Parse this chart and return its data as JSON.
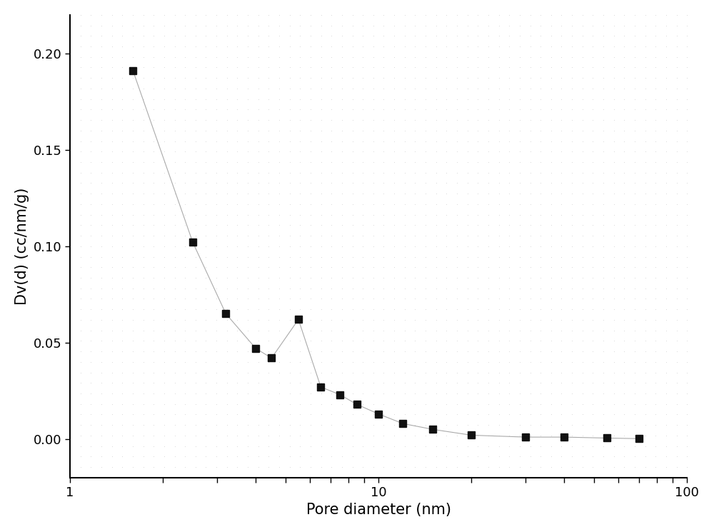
{
  "x": [
    1.6,
    2.5,
    3.2,
    4.0,
    4.5,
    5.5,
    6.5,
    7.5,
    8.5,
    10.0,
    12.0,
    15.0,
    20.0,
    30.0,
    40.0,
    55.0,
    70.0
  ],
  "y": [
    0.191,
    0.102,
    0.065,
    0.047,
    0.042,
    0.062,
    0.027,
    0.023,
    0.018,
    0.013,
    0.008,
    0.005,
    0.002,
    0.001,
    0.001,
    0.0005,
    0.0002
  ],
  "xlabel": "Pore diameter (nm)",
  "ylabel": "Dv(d) (cc/nm/g)",
  "xlim": [
    1,
    100
  ],
  "ylim": [
    -0.02,
    0.22
  ],
  "yticks": [
    0.0,
    0.05,
    0.1,
    0.15,
    0.2
  ],
  "line_color": "#aaaaaa",
  "marker_color": "#111111",
  "background_color": "#ffffff",
  "dot_color": "#cccccc",
  "marker_size": 7,
  "line_width": 0.8,
  "xlabel_fontsize": 15,
  "ylabel_fontsize": 15,
  "tick_fontsize": 13
}
